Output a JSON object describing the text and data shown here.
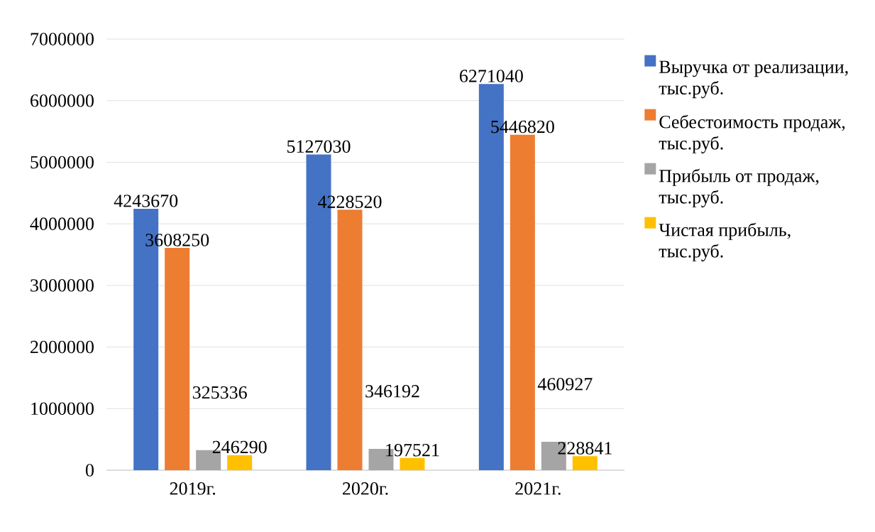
{
  "chart_data": {
    "type": "bar",
    "categories": [
      "2019г.",
      "2020г.",
      "2021г."
    ],
    "series": [
      {
        "name": "Выручка от реализации, тыс.руб.",
        "color": "#4472c4",
        "values": [
          4243670,
          5127030,
          6271040
        ]
      },
      {
        "name": "Себестоимость продаж, тыс.руб.",
        "color": "#ed7d31",
        "values": [
          3608250,
          4228520,
          5446820
        ]
      },
      {
        "name": "Прибыль от продаж, тыс.руб.",
        "color": "#a5a5a5",
        "values": [
          325336,
          346192,
          460927
        ]
      },
      {
        "name": "Чистая прибыль, тыс.руб.",
        "color": "#ffc000",
        "values": [
          246290,
          197521,
          228841
        ]
      }
    ],
    "ylim": [
      0,
      7000000
    ],
    "yticks": [
      0,
      1000000,
      2000000,
      3000000,
      4000000,
      5000000,
      6000000,
      7000000
    ],
    "grid": "y",
    "legend": "right",
    "data_labels": true
  }
}
